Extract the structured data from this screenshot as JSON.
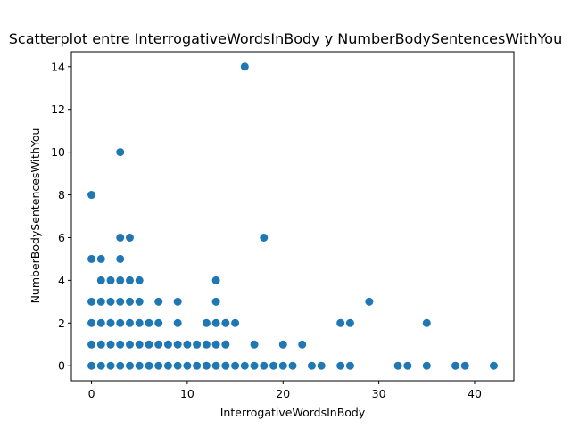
{
  "chart_data": {
    "type": "scatter",
    "title": "Scatterplot entre InterrogativeWordsInBody y NumberBodySentencesWithYou",
    "xlabel": "InterrogativeWordsInBody",
    "ylabel": "NumberBodySentencesWithYou",
    "xlim": [
      -2.1,
      44.1
    ],
    "ylim": [
      -0.7,
      14.7
    ],
    "xticks": [
      0,
      10,
      20,
      30,
      40
    ],
    "yticks": [
      0,
      2,
      4,
      6,
      8,
      10,
      12,
      14
    ],
    "xtick_labels": [
      "0",
      "10",
      "20",
      "30",
      "40"
    ],
    "ytick_labels": [
      "0",
      "2",
      "4",
      "6",
      "8",
      "10",
      "12",
      "14"
    ],
    "marker_color": "#1f77b4",
    "grid": false,
    "points": [
      [
        0,
        0
      ],
      [
        1,
        0
      ],
      [
        2,
        0
      ],
      [
        3,
        0
      ],
      [
        4,
        0
      ],
      [
        5,
        0
      ],
      [
        6,
        0
      ],
      [
        7,
        0
      ],
      [
        8,
        0
      ],
      [
        9,
        0
      ],
      [
        10,
        0
      ],
      [
        11,
        0
      ],
      [
        12,
        0
      ],
      [
        13,
        0
      ],
      [
        14,
        0
      ],
      [
        15,
        0
      ],
      [
        16,
        0
      ],
      [
        17,
        0
      ],
      [
        18,
        0
      ],
      [
        19,
        0
      ],
      [
        20,
        0
      ],
      [
        21,
        0
      ],
      [
        23,
        0
      ],
      [
        24,
        0
      ],
      [
        26,
        0
      ],
      [
        27,
        0
      ],
      [
        32,
        0
      ],
      [
        33,
        0
      ],
      [
        35,
        0
      ],
      [
        38,
        0
      ],
      [
        39,
        0
      ],
      [
        42,
        0
      ],
      [
        0,
        1
      ],
      [
        1,
        1
      ],
      [
        2,
        1
      ],
      [
        3,
        1
      ],
      [
        4,
        1
      ],
      [
        5,
        1
      ],
      [
        6,
        1
      ],
      [
        7,
        1
      ],
      [
        8,
        1
      ],
      [
        9,
        1
      ],
      [
        10,
        1
      ],
      [
        11,
        1
      ],
      [
        12,
        1
      ],
      [
        13,
        1
      ],
      [
        14,
        1
      ],
      [
        17,
        1
      ],
      [
        20,
        1
      ],
      [
        22,
        1
      ],
      [
        0,
        2
      ],
      [
        1,
        2
      ],
      [
        2,
        2
      ],
      [
        3,
        2
      ],
      [
        4,
        2
      ],
      [
        5,
        2
      ],
      [
        6,
        2
      ],
      [
        7,
        2
      ],
      [
        9,
        2
      ],
      [
        12,
        2
      ],
      [
        13,
        2
      ],
      [
        14,
        2
      ],
      [
        15,
        2
      ],
      [
        26,
        2
      ],
      [
        27,
        2
      ],
      [
        35,
        2
      ],
      [
        0,
        3
      ],
      [
        1,
        3
      ],
      [
        2,
        3
      ],
      [
        3,
        3
      ],
      [
        4,
        3
      ],
      [
        5,
        3
      ],
      [
        7,
        3
      ],
      [
        9,
        3
      ],
      [
        13,
        3
      ],
      [
        29,
        3
      ],
      [
        1,
        4
      ],
      [
        2,
        4
      ],
      [
        3,
        4
      ],
      [
        4,
        4
      ],
      [
        5,
        4
      ],
      [
        13,
        4
      ],
      [
        0,
        5
      ],
      [
        1,
        5
      ],
      [
        3,
        5
      ],
      [
        3,
        6
      ],
      [
        4,
        6
      ],
      [
        18,
        6
      ],
      [
        0,
        8
      ],
      [
        3,
        10
      ],
      [
        16,
        14
      ]
    ]
  }
}
